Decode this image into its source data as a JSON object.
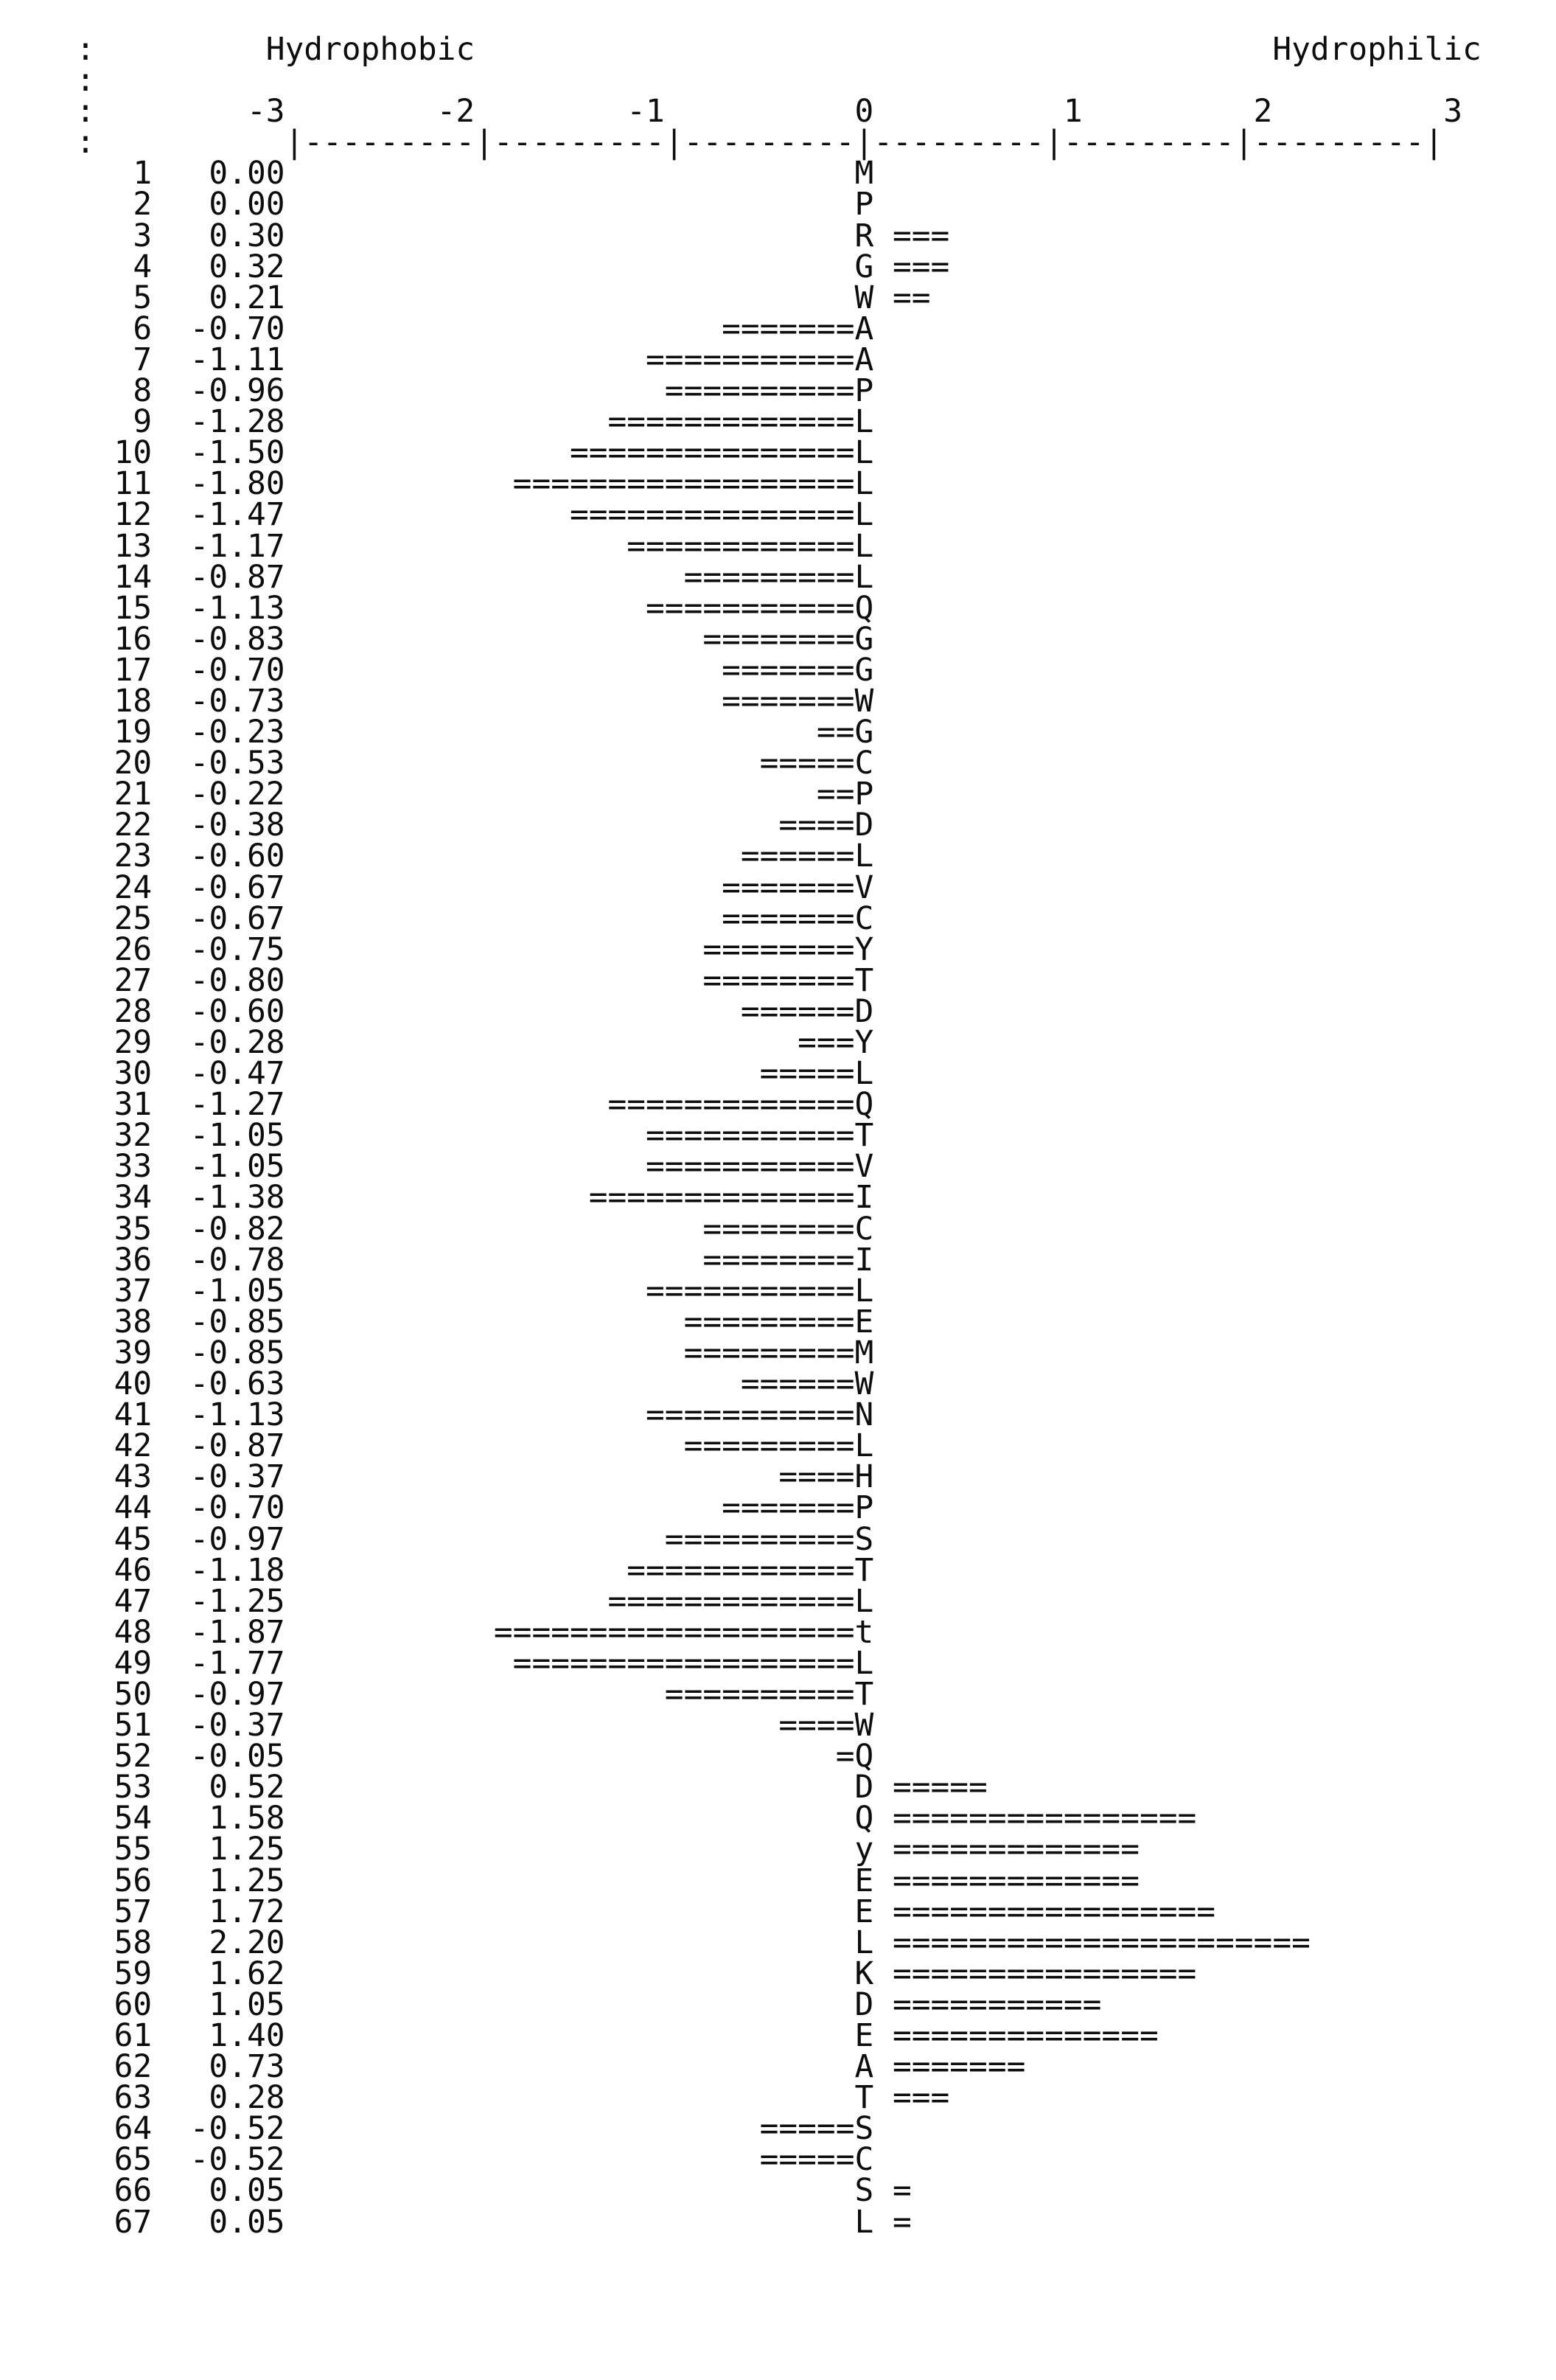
{
  "page": {
    "background": "#ffffff",
    "text_color": "#0d0d0d",
    "margin_marks": [
      ":",
      ":",
      ":",
      ":"
    ]
  },
  "header": {
    "left_label": "Hydrophobic",
    "right_label": "Hydrophilic",
    "tick_labels": [
      "-3",
      "-2",
      "-1",
      "0",
      "1",
      "2",
      "3"
    ]
  },
  "chart_data": {
    "type": "bar",
    "orientation": "horizontal",
    "title": "",
    "xlabel_left": "Hydrophobic",
    "xlabel_right": "Hydrophilic",
    "xlim": [
      -3,
      3
    ],
    "axis_tick_values": [
      -3,
      -2,
      -1,
      0,
      1,
      2,
      3
    ],
    "units_per_bar_char": 0.1,
    "bar_char": "=",
    "grid": "dashed-ruler-top",
    "legend": "none",
    "rows": [
      {
        "pos": 1,
        "value": 0.0,
        "residue": "M"
      },
      {
        "pos": 2,
        "value": 0.0,
        "residue": "P"
      },
      {
        "pos": 3,
        "value": 0.3,
        "residue": "R"
      },
      {
        "pos": 4,
        "value": 0.32,
        "residue": "G"
      },
      {
        "pos": 5,
        "value": 0.21,
        "residue": "W"
      },
      {
        "pos": 6,
        "value": -0.7,
        "residue": "A"
      },
      {
        "pos": 7,
        "value": -1.11,
        "residue": "A"
      },
      {
        "pos": 8,
        "value": -0.96,
        "residue": "P"
      },
      {
        "pos": 9,
        "value": -1.28,
        "residue": "L"
      },
      {
        "pos": 10,
        "value": -1.5,
        "residue": "L"
      },
      {
        "pos": 11,
        "value": -1.8,
        "residue": "L"
      },
      {
        "pos": 12,
        "value": -1.47,
        "residue": "L"
      },
      {
        "pos": 13,
        "value": -1.17,
        "residue": "L"
      },
      {
        "pos": 14,
        "value": -0.87,
        "residue": "L"
      },
      {
        "pos": 15,
        "value": -1.13,
        "residue": "Q"
      },
      {
        "pos": 16,
        "value": -0.83,
        "residue": "G"
      },
      {
        "pos": 17,
        "value": -0.7,
        "residue": "G"
      },
      {
        "pos": 18,
        "value": -0.73,
        "residue": "W"
      },
      {
        "pos": 19,
        "value": -0.23,
        "residue": "G"
      },
      {
        "pos": 20,
        "value": -0.53,
        "residue": "C"
      },
      {
        "pos": 21,
        "value": -0.22,
        "residue": "P"
      },
      {
        "pos": 22,
        "value": -0.38,
        "residue": "D"
      },
      {
        "pos": 23,
        "value": -0.6,
        "residue": "L"
      },
      {
        "pos": 24,
        "value": -0.67,
        "residue": "V"
      },
      {
        "pos": 25,
        "value": -0.67,
        "residue": "C"
      },
      {
        "pos": 26,
        "value": -0.75,
        "residue": "Y"
      },
      {
        "pos": 27,
        "value": -0.8,
        "residue": "T"
      },
      {
        "pos": 28,
        "value": -0.6,
        "residue": "D"
      },
      {
        "pos": 29,
        "value": -0.28,
        "residue": "Y"
      },
      {
        "pos": 30,
        "value": -0.47,
        "residue": "L"
      },
      {
        "pos": 31,
        "value": -1.27,
        "residue": "Q"
      },
      {
        "pos": 32,
        "value": -1.05,
        "residue": "T"
      },
      {
        "pos": 33,
        "value": -1.05,
        "residue": "V"
      },
      {
        "pos": 34,
        "value": -1.38,
        "residue": "I"
      },
      {
        "pos": 35,
        "value": -0.82,
        "residue": "C"
      },
      {
        "pos": 36,
        "value": -0.78,
        "residue": "I"
      },
      {
        "pos": 37,
        "value": -1.05,
        "residue": "L"
      },
      {
        "pos": 38,
        "value": -0.85,
        "residue": "E"
      },
      {
        "pos": 39,
        "value": -0.85,
        "residue": "M"
      },
      {
        "pos": 40,
        "value": -0.63,
        "residue": "W"
      },
      {
        "pos": 41,
        "value": -1.13,
        "residue": "N"
      },
      {
        "pos": 42,
        "value": -0.87,
        "residue": "L"
      },
      {
        "pos": 43,
        "value": -0.37,
        "residue": "H"
      },
      {
        "pos": 44,
        "value": -0.7,
        "residue": "P"
      },
      {
        "pos": 45,
        "value": -0.97,
        "residue": "S"
      },
      {
        "pos": 46,
        "value": -1.18,
        "residue": "T"
      },
      {
        "pos": 47,
        "value": -1.25,
        "residue": "L"
      },
      {
        "pos": 48,
        "value": -1.87,
        "residue": "t"
      },
      {
        "pos": 49,
        "value": -1.77,
        "residue": "L"
      },
      {
        "pos": 50,
        "value": -0.97,
        "residue": "T"
      },
      {
        "pos": 51,
        "value": -0.37,
        "residue": "W"
      },
      {
        "pos": 52,
        "value": -0.05,
        "residue": "Q"
      },
      {
        "pos": 53,
        "value": 0.52,
        "residue": "D"
      },
      {
        "pos": 54,
        "value": 1.58,
        "residue": "Q"
      },
      {
        "pos": 55,
        "value": 1.25,
        "residue": "y"
      },
      {
        "pos": 56,
        "value": 1.25,
        "residue": "E"
      },
      {
        "pos": 57,
        "value": 1.72,
        "residue": "E"
      },
      {
        "pos": 58,
        "value": 2.2,
        "residue": "L"
      },
      {
        "pos": 59,
        "value": 1.62,
        "residue": "K"
      },
      {
        "pos": 60,
        "value": 1.05,
        "residue": "D"
      },
      {
        "pos": 61,
        "value": 1.4,
        "residue": "E"
      },
      {
        "pos": 62,
        "value": 0.73,
        "residue": "A"
      },
      {
        "pos": 63,
        "value": 0.28,
        "residue": "T"
      },
      {
        "pos": 64,
        "value": -0.52,
        "residue": "S"
      },
      {
        "pos": 65,
        "value": -0.52,
        "residue": "C"
      },
      {
        "pos": 66,
        "value": 0.05,
        "residue": "S"
      },
      {
        "pos": 67,
        "value": 0.05,
        "residue": "L"
      }
    ]
  }
}
